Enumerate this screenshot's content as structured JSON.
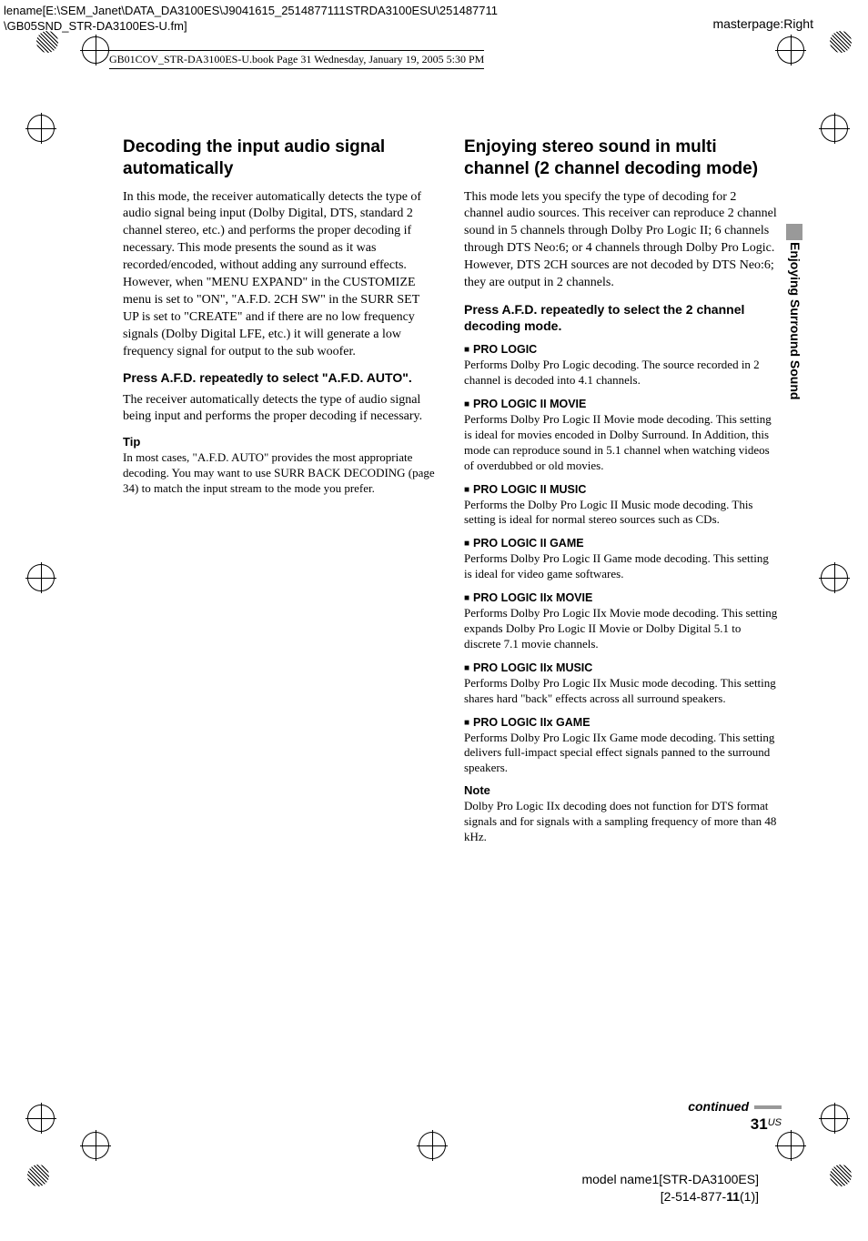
{
  "header": {
    "path_line1": "lename[E:\\SEM_Janet\\DATA_DA3100ES\\J9041615_2514877111STRDA3100ESU\\251487711",
    "path_line2": "\\GB05SND_STR-DA3100ES-U.fm]",
    "masterpage": "masterpage:Right",
    "book_info": "GB01COV_STR-DA3100ES-U.book  Page 31  Wednesday, January 19, 2005  5:30 PM"
  },
  "side_tab": "Enjoying Surround Sound",
  "left": {
    "title": "Decoding the input audio signal automatically",
    "body": "In this mode, the receiver automatically detects the type of audio signal being input (Dolby Digital, DTS, standard 2 channel stereo, etc.) and performs the proper decoding if necessary. This mode presents the sound as it was recorded/encoded, without adding any surround effects. However, when \"MENU EXPAND\" in the CUSTOMIZE menu is set to \"ON\", \"A.F.D. 2CH SW\" in the SURR SET UP is set to \"CREATE\" and if there are no low frequency signals (Dolby Digital LFE, etc.) it will generate a low frequency signal for output to the sub woofer.",
    "instruction": "Press A.F.D. repeatedly to select \"A.F.D. AUTO\".",
    "body2": "The receiver automatically detects the type of audio signal being input and performs the proper decoding if necessary.",
    "tip_label": "Tip",
    "tip_body": "In most cases, \"A.F.D. AUTO\" provides the most appropriate decoding. You may want to use SURR BACK DECODING (page 34) to match the input stream to the mode you prefer."
  },
  "right": {
    "title": "Enjoying stereo sound in multi channel (2 channel decoding mode)",
    "body": "This mode lets you specify the type of decoding for 2 channel audio sources. This receiver can reproduce 2 channel sound in 5 channels through Dolby Pro Logic II; 6 channels through DTS Neo:6; or 4 channels through Dolby Pro Logic. However, DTS 2CH sources are not decoded by DTS Neo:6; they are output in 2 channels.",
    "instruction": "Press A.F.D. repeatedly to select the 2 channel decoding mode.",
    "modes": [
      {
        "heading": "PRO LOGIC",
        "body": "Performs Dolby Pro Logic decoding. The source recorded in 2 channel is decoded into 4.1 channels."
      },
      {
        "heading": "PRO LOGIC II MOVIE",
        "body": "Performs Dolby Pro Logic II Movie mode decoding. This setting is ideal for movies encoded in Dolby Surround. In Addition, this mode can reproduce sound in 5.1 channel when watching videos of overdubbed or old movies."
      },
      {
        "heading": "PRO LOGIC II MUSIC",
        "body": "Performs the Dolby Pro Logic II Music mode decoding. This setting is ideal for normal stereo sources such as CDs."
      },
      {
        "heading": "PRO LOGIC II GAME",
        "body": "Performs Dolby Pro Logic II Game mode decoding. This setting is ideal for video game softwares."
      },
      {
        "heading": "PRO LOGIC IIx MOVIE",
        "body": "Performs Dolby Pro Logic IIx Movie mode decoding. This setting expands Dolby Pro Logic II Movie or Dolby Digital 5.1 to discrete 7.1 movie channels."
      },
      {
        "heading": "PRO LOGIC IIx MUSIC",
        "body": "Performs Dolby Pro Logic IIx Music mode decoding. This setting shares hard \"back\" effects across all surround speakers."
      },
      {
        "heading": "PRO LOGIC IIx GAME",
        "body": "Performs Dolby Pro Logic IIx Game mode decoding. This setting delivers full-impact special effect signals panned to the surround speakers."
      }
    ],
    "note_label": "Note",
    "note_body": "Dolby Pro Logic IIx decoding does not function for DTS format signals and for signals with a sampling frequency of more than 48 kHz."
  },
  "footer": {
    "continued": "continued",
    "page_number": "31",
    "page_region": "US",
    "model_line1": "model name1[STR-DA3100ES]",
    "model_line2_pre": "[2-514-877-",
    "model_line2_bold": "11",
    "model_line2_post": "(1)]"
  }
}
